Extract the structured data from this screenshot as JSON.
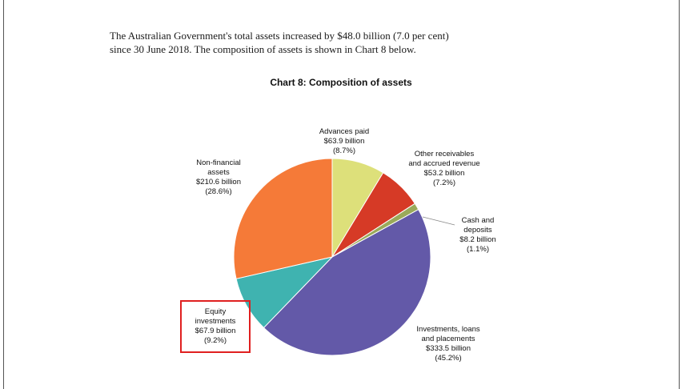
{
  "document": {
    "intro_line1": "The Australian Government's total assets increased by $48.0 billion (7.0 per cent)",
    "intro_line2": "since 30 June 2018. The composition of assets is shown in Chart 8 below."
  },
  "chart_data": {
    "type": "pie",
    "title": "Chart 8: Composition of assets",
    "series": [
      {
        "name": "Advances paid",
        "value_label": "$63.9 billion",
        "percent_label": "(8.7%)",
        "value": 63.9,
        "percent": 8.7,
        "color": "#dde07a"
      },
      {
        "name": "Other receivables and accrued revenue",
        "value_label": "$53.2 billion",
        "percent_label": "(7.2%)",
        "value": 53.2,
        "percent": 7.2,
        "color": "#d63a26"
      },
      {
        "name": "Cash and deposits",
        "value_label": "$8.2 billion",
        "percent_label": "(1.1%)",
        "value": 8.2,
        "percent": 1.1,
        "color": "#9aaa5a"
      },
      {
        "name": "Investments, loans and placements",
        "value_label": "$333.5 billion",
        "percent_label": "(45.2%)",
        "value": 333.5,
        "percent": 45.2,
        "color": "#6359a8"
      },
      {
        "name": "Equity investments",
        "value_label": "$67.9 billion",
        "percent_label": "(9.2%)",
        "value": 67.9,
        "percent": 9.2,
        "color": "#3fb3b0"
      },
      {
        "name": "Non-financial assets",
        "value_label": "$210.6 billion",
        "percent_label": "(28.6%)",
        "value": 210.6,
        "percent": 28.6,
        "color": "#f57a38"
      }
    ],
    "labels": {
      "advances": [
        "Advances paid",
        "$63.9 billion",
        "(8.7%)"
      ],
      "other": [
        "Other receivables",
        "and accrued revenue",
        "$53.2 billion",
        "(7.2%)"
      ],
      "cash": [
        "Cash and",
        "deposits",
        "$8.2 billion",
        "(1.1%)"
      ],
      "investments": [
        "Investments, loans",
        "and placements",
        "$333.5 billion",
        "(45.2%)"
      ],
      "equity": [
        "Equity",
        "investments",
        "$67.9 billion",
        "(9.2%)"
      ],
      "nonfin": [
        "Non-financial",
        "assets",
        "$210.6 billion",
        "(28.6%)"
      ]
    },
    "highlighted_slice": "Equity investments",
    "highlight_color": "#e02020"
  }
}
